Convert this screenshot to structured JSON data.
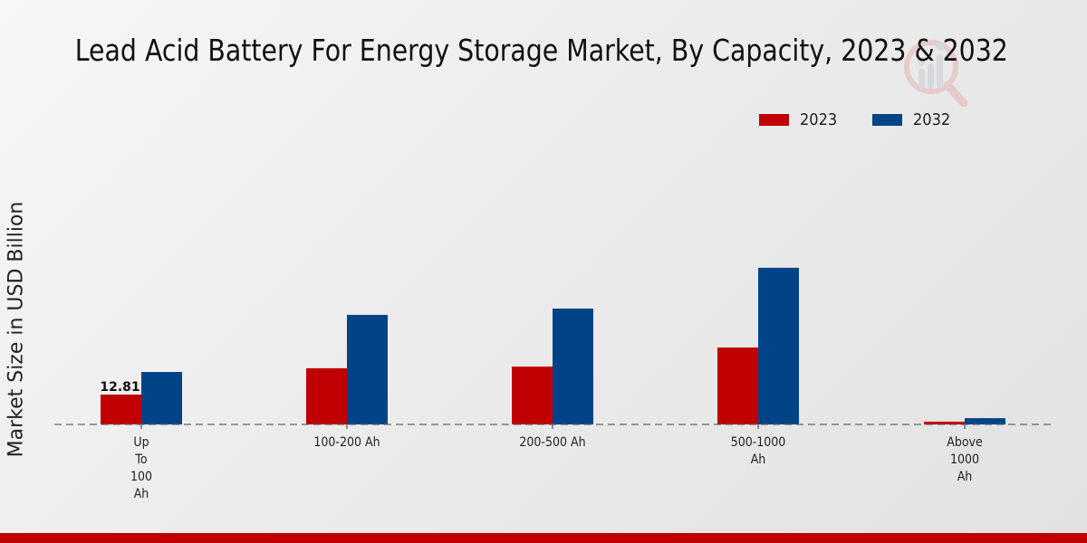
{
  "chart_data": {
    "type": "bar",
    "title": "Lead Acid Battery For Energy Storage Market, By Capacity, 2023 & 2032",
    "xlabel": "",
    "ylabel": "Market Size in USD Billion",
    "categories": [
      "Up To 100 Ah",
      "100-200 Ah",
      "200-500 Ah",
      "500-1000 Ah",
      "Above 1000 Ah"
    ],
    "category_label_lines": [
      [
        "Up",
        "To",
        "100",
        "Ah"
      ],
      [
        "100-200 Ah"
      ],
      [
        "200-500 Ah"
      ],
      [
        "500-1000",
        "Ah"
      ],
      [
        "Above",
        "1000",
        "Ah"
      ]
    ],
    "series": [
      {
        "name": "2023",
        "color": "#c00000",
        "values": [
          12.81,
          24.1,
          24.8,
          33.0,
          1.2
        ]
      },
      {
        "name": "2032",
        "color": "#004487",
        "values": [
          22.5,
          47.0,
          49.7,
          67.2,
          2.7
        ]
      }
    ],
    "data_labels": [
      {
        "series": "2023",
        "category": "Up To 100 Ah",
        "text": "12.81"
      }
    ],
    "ylim": [
      0,
      100
    ],
    "grid": false,
    "baseline": "dashed",
    "legend_position": "top-right"
  },
  "branding": {
    "watermark_icon": "market-research-logo-icon",
    "footer_bar_color": "#c00000"
  }
}
